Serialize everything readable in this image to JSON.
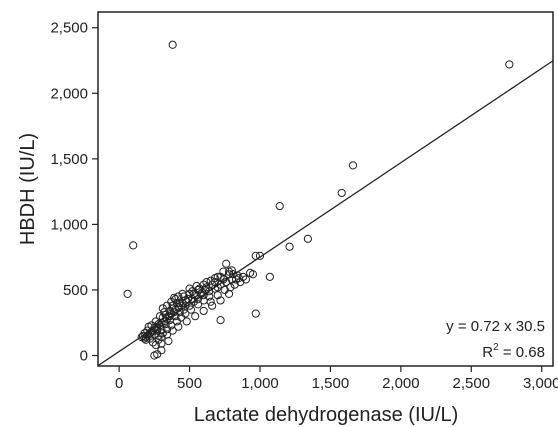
{
  "chart_data": {
    "type": "scatter",
    "title": "",
    "xlabel": "Lactate dehydrogenase (IU/L)",
    "ylabel": "HBDH (IU/L)",
    "xlim": [
      -150,
      3080
    ],
    "ylim": [
      -80,
      2620
    ],
    "xticks": [
      0,
      500,
      1000,
      1500,
      2000,
      2500,
      3000
    ],
    "xtick_labels": [
      "0",
      "500",
      "1,000",
      "1,500",
      "2,000",
      "2,500",
      "3,000"
    ],
    "yticks": [
      0,
      500,
      1000,
      1500,
      2000,
      2500
    ],
    "ytick_labels": [
      "0",
      "500",
      "1,000",
      "1,500",
      "2,000",
      "2,500"
    ],
    "grid": false,
    "legend": "none",
    "regression_line": {
      "slope": 0.72,
      "intercept": 30.5
    },
    "annotations": {
      "equation": "y = 0.72 x 30.5",
      "r2_base": "R",
      "r2_sup": "2",
      "r2_value": " = 0.68"
    },
    "marker": "open-circle",
    "points": [
      [
        380,
        2370
      ],
      [
        2770,
        2220
      ],
      [
        1660,
        1450
      ],
      [
        1580,
        1240
      ],
      [
        1140,
        1140
      ],
      [
        1340,
        890
      ],
      [
        1210,
        830
      ],
      [
        100,
        840
      ],
      [
        1000,
        760
      ],
      [
        970,
        760
      ],
      [
        1070,
        600
      ],
      [
        930,
        630
      ],
      [
        60,
        470
      ],
      [
        970,
        320
      ],
      [
        720,
        270
      ],
      [
        860,
        560
      ],
      [
        840,
        610
      ],
      [
        800,
        650
      ],
      [
        780,
        620
      ],
      [
        760,
        700
      ],
      [
        740,
        640
      ],
      [
        820,
        540
      ],
      [
        700,
        600
      ],
      [
        680,
        560
      ],
      [
        650,
        570
      ],
      [
        620,
        520
      ],
      [
        600,
        540
      ],
      [
        590,
        480
      ],
      [
        560,
        500
      ],
      [
        540,
        460
      ],
      [
        520,
        490
      ],
      [
        500,
        470
      ],
      [
        490,
        430
      ],
      [
        470,
        420
      ],
      [
        460,
        450
      ],
      [
        450,
        400
      ],
      [
        440,
        380
      ],
      [
        420,
        370
      ],
      [
        410,
        400
      ],
      [
        400,
        350
      ],
      [
        390,
        330
      ],
      [
        380,
        360
      ],
      [
        370,
        320
      ],
      [
        360,
        340
      ],
      [
        350,
        300
      ],
      [
        340,
        280
      ],
      [
        330,
        310
      ],
      [
        320,
        260
      ],
      [
        310,
        290
      ],
      [
        300,
        250
      ],
      [
        290,
        230
      ],
      [
        280,
        240
      ],
      [
        270,
        220
      ],
      [
        260,
        200
      ],
      [
        250,
        210
      ],
      [
        240,
        190
      ],
      [
        230,
        180
      ],
      [
        220,
        170
      ],
      [
        210,
        160
      ],
      [
        200,
        150
      ],
      [
        190,
        140
      ],
      [
        180,
        130
      ],
      [
        250,
        160
      ],
      [
        270,
        190
      ],
      [
        300,
        200
      ],
      [
        330,
        240
      ],
      [
        360,
        270
      ],
      [
        400,
        300
      ],
      [
        430,
        330
      ],
      [
        460,
        350
      ],
      [
        500,
        380
      ],
      [
        530,
        410
      ],
      [
        560,
        430
      ],
      [
        600,
        460
      ],
      [
        640,
        490
      ],
      [
        680,
        510
      ],
      [
        720,
        540
      ],
      [
        760,
        560
      ],
      [
        800,
        580
      ],
      [
        280,
        120
      ],
      [
        300,
        140
      ],
      [
        340,
        160
      ],
      [
        380,
        190
      ],
      [
        420,
        220
      ],
      [
        480,
        260
      ],
      [
        540,
        300
      ],
      [
        600,
        340
      ],
      [
        660,
        380
      ],
      [
        720,
        420
      ],
      [
        780,
        470
      ],
      [
        240,
        100
      ],
      [
        260,
        80
      ],
      [
        300,
        90
      ],
      [
        350,
        110
      ],
      [
        270,
        10
      ],
      [
        300,
        40
      ],
      [
        250,
        0
      ],
      [
        400,
        430
      ],
      [
        450,
        470
      ],
      [
        500,
        510
      ],
      [
        550,
        530
      ],
      [
        620,
        560
      ],
      [
        680,
        590
      ],
      [
        720,
        600
      ],
      [
        780,
        640
      ],
      [
        830,
        580
      ],
      [
        520,
        430
      ],
      [
        580,
        470
      ],
      [
        640,
        450
      ],
      [
        310,
        360
      ],
      [
        340,
        380
      ],
      [
        370,
        410
      ],
      [
        390,
        440
      ],
      [
        420,
        450
      ],
      [
        480,
        410
      ],
      [
        230,
        230
      ],
      [
        260,
        260
      ],
      [
        290,
        300
      ],
      [
        320,
        330
      ],
      [
        200,
        190
      ],
      [
        210,
        220
      ],
      [
        180,
        170
      ],
      [
        170,
        150
      ],
      [
        160,
        140
      ],
      [
        190,
        120
      ],
      [
        220,
        130
      ],
      [
        650,
        410
      ],
      [
        700,
        460
      ],
      [
        750,
        500
      ],
      [
        790,
        520
      ],
      [
        600,
        420
      ],
      [
        560,
        390
      ],
      [
        510,
        350
      ],
      [
        470,
        320
      ],
      [
        440,
        290
      ],
      [
        410,
        260
      ],
      [
        370,
        230
      ],
      [
        340,
        200
      ],
      [
        310,
        170
      ],
      [
        280,
        150
      ],
      [
        880,
        600
      ],
      [
        900,
        580
      ],
      [
        950,
        620
      ],
      [
        470,
        380
      ],
      [
        530,
        470
      ],
      [
        570,
        510
      ],
      [
        610,
        500
      ],
      [
        660,
        540
      ],
      [
        700,
        520
      ],
      [
        740,
        580
      ],
      [
        810,
        620
      ],
      [
        850,
        590
      ],
      [
        430,
        400
      ],
      [
        380,
        380
      ],
      [
        360,
        300
      ]
    ]
  }
}
